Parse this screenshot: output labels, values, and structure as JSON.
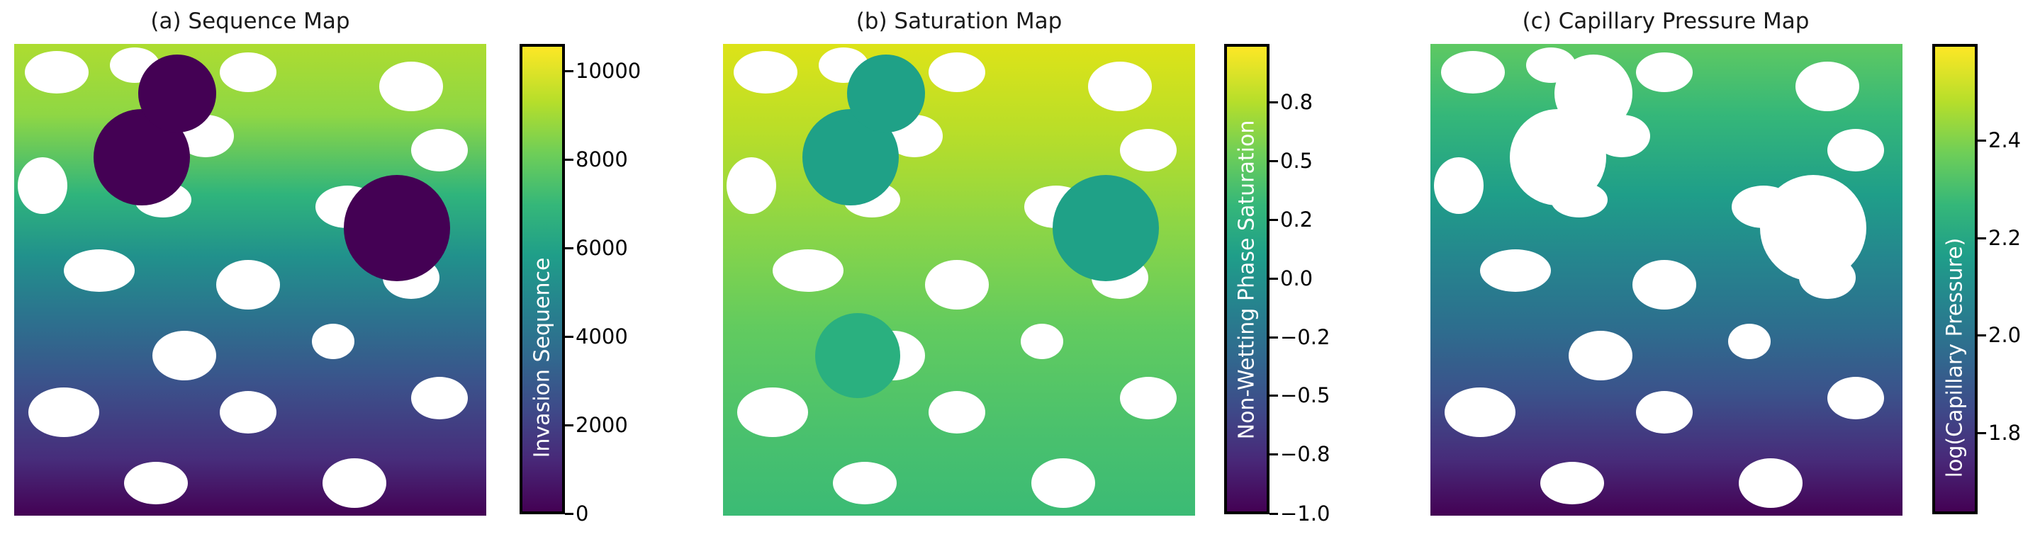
{
  "chart_data": [
    {
      "type": "heatmap",
      "title": "(a) Sequence Map",
      "colorbar": {
        "label": "Invasion Sequence",
        "range": [
          0,
          10600
        ],
        "ticks": [
          "0",
          "2000",
          "4000",
          "6000",
          "8000",
          "10000"
        ],
        "tick_values": [
          0,
          2000,
          4000,
          6000,
          8000,
          10000
        ]
      },
      "colormap": "viridis"
    },
    {
      "type": "heatmap",
      "title": "(b) Saturation Map",
      "colorbar": {
        "label": "Non-Wetting Phase Saturation",
        "range": [
          -1.0,
          1.0
        ],
        "ticks": [
          "−1.0",
          "−0.8",
          "−0.5",
          "−0.2",
          "0.0",
          "0.2",
          "0.5",
          "0.8"
        ],
        "tick_values": [
          -1.0,
          -0.75,
          -0.5,
          -0.25,
          0.0,
          0.25,
          0.5,
          0.75
        ]
      },
      "colormap": "viridis"
    },
    {
      "type": "heatmap",
      "title": "(c) Capillary Pressure Map",
      "colorbar": {
        "label": "log(Capillary Pressure)",
        "range": [
          1.64,
          2.59
        ],
        "ticks": [
          "1.8",
          "2.0",
          "2.2",
          "2.4"
        ],
        "tick_values": [
          1.8,
          2.0,
          2.2,
          2.4
        ]
      },
      "colormap": "viridis"
    }
  ]
}
